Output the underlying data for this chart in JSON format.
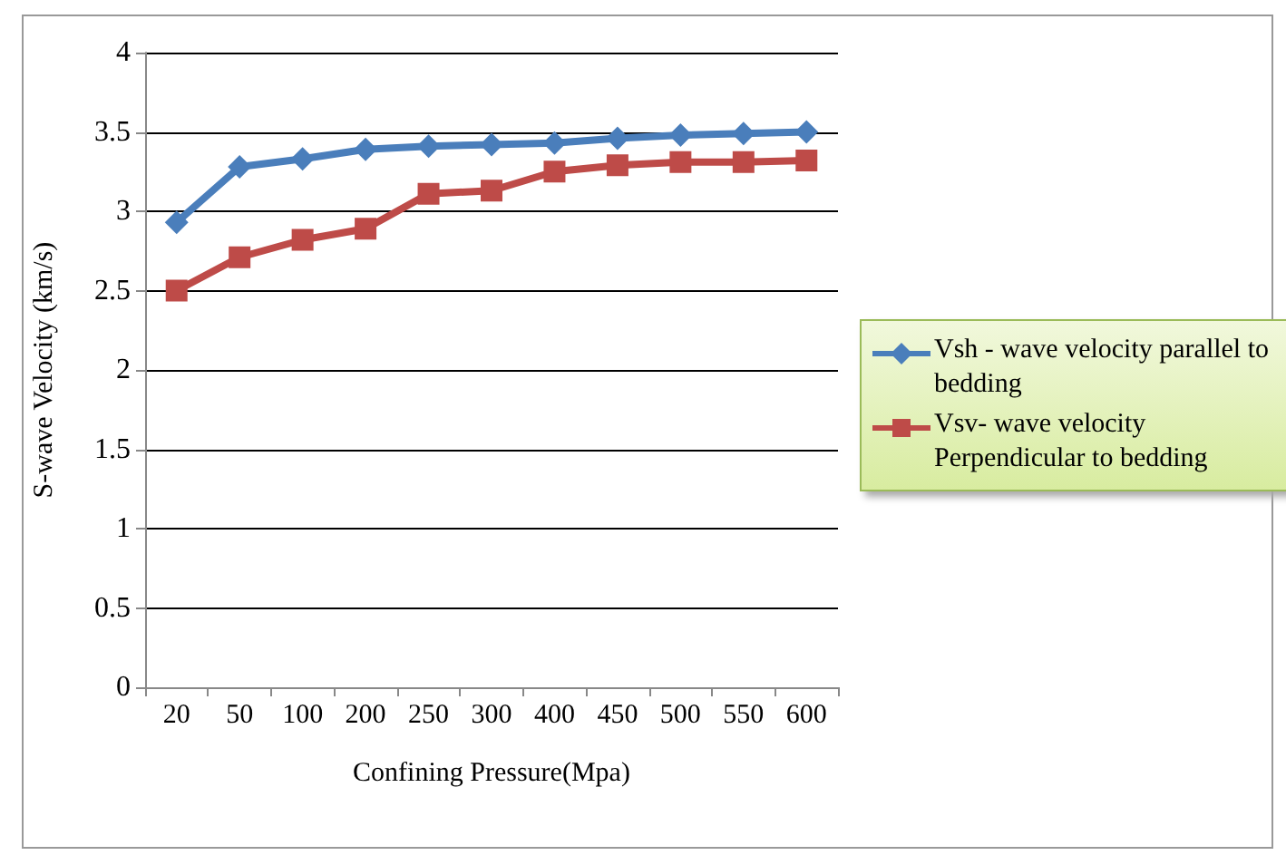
{
  "chart_data": {
    "type": "line",
    "xlabel": "Confining Pressure(Mpa)",
    "ylabel": "S-wave Velocity (km/s)",
    "categories": [
      "20",
      "50",
      "100",
      "200",
      "250",
      "300",
      "400",
      "450",
      "500",
      "550",
      "600"
    ],
    "series": [
      {
        "name": "Vsh - wave velocity parallel to bedding",
        "color": "#4a7ebb",
        "marker": "diamond",
        "values": [
          2.93,
          3.28,
          3.33,
          3.39,
          3.41,
          3.42,
          3.43,
          3.46,
          3.48,
          3.49,
          3.5
        ]
      },
      {
        "name": "Vsv- wave velocity Perpendicular to bedding",
        "color": "#be4b48",
        "marker": "square",
        "values": [
          2.5,
          2.71,
          2.82,
          2.89,
          3.11,
          3.13,
          3.25,
          3.29,
          3.31,
          3.31,
          3.32
        ]
      }
    ],
    "ylim": [
      0,
      4
    ],
    "yticks": [
      0,
      0.5,
      1,
      1.5,
      2,
      2.5,
      3,
      3.5,
      4
    ],
    "grid": "y",
    "legend": "right"
  }
}
